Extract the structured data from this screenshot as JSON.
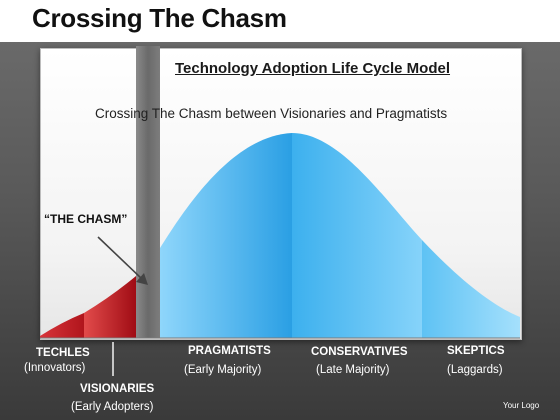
{
  "slide": {
    "title": "Crossing The Chasm",
    "logo_text": "Your Logo"
  },
  "diagram": {
    "title": "Technology Adoption Life Cycle Model",
    "subtitle": "Crossing The Chasm between Visionaries and Pragmatists",
    "chasm_label": "“THE CHASM”",
    "segments": [
      {
        "name": "TECHLES",
        "sub": "(Innovators)"
      },
      {
        "name": "VISIONARIES",
        "sub": "(Early Adopters)"
      },
      {
        "name": "PRAGMATISTS",
        "sub": "(Early Majority)"
      },
      {
        "name": "CONSERVATIVES",
        "sub": "(Late Majority)"
      },
      {
        "name": "SKEPTICS",
        "sub": "(Laggards)"
      }
    ]
  },
  "colors": {
    "early_segments": "#c0141c",
    "majority_segments": "#2ea8e8",
    "chasm": "#777777"
  }
}
